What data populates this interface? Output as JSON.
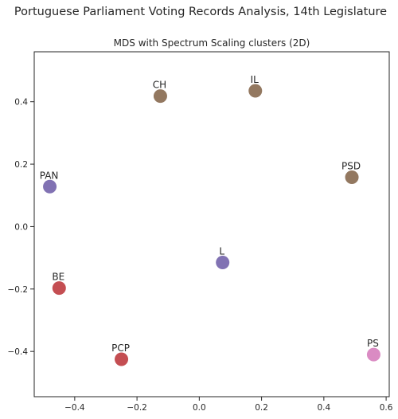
{
  "chart_data": {
    "type": "scatter",
    "suptitle": "Portuguese Parliament Voting Records Analysis, 14th Legislature",
    "title": "MDS with Spectrum Scaling clusters (2D)",
    "xlabel": "",
    "ylabel": "",
    "xlim": [
      -0.53,
      0.61
    ],
    "ylim": [
      -0.545,
      0.56
    ],
    "xticks": [
      {
        "value": -0.4,
        "label": "−0.4"
      },
      {
        "value": -0.2,
        "label": "−0.2"
      },
      {
        "value": 0.0,
        "label": "0.0"
      },
      {
        "value": 0.2,
        "label": "0.2"
      },
      {
        "value": 0.4,
        "label": "0.4"
      },
      {
        "value": 0.6,
        "label": "0.6"
      }
    ],
    "yticks": [
      {
        "value": -0.4,
        "label": "−0.4"
      },
      {
        "value": -0.2,
        "label": "−0.2"
      },
      {
        "value": 0.0,
        "label": "0.0"
      },
      {
        "value": 0.2,
        "label": "0.2"
      },
      {
        "value": 0.4,
        "label": "0.4"
      }
    ],
    "grid": false,
    "points": [
      {
        "label": "CH",
        "x": -0.125,
        "y": 0.418,
        "color": "#937860"
      },
      {
        "label": "IL",
        "x": 0.18,
        "y": 0.435,
        "color": "#937860"
      },
      {
        "label": "PSD",
        "x": 0.49,
        "y": 0.158,
        "color": "#937860"
      },
      {
        "label": "PAN",
        "x": -0.48,
        "y": 0.128,
        "color": "#8172b3"
      },
      {
        "label": "L",
        "x": 0.075,
        "y": -0.115,
        "color": "#8172b3"
      },
      {
        "label": "BE",
        "x": -0.45,
        "y": -0.197,
        "color": "#c44e52"
      },
      {
        "label": "PCP",
        "x": -0.25,
        "y": -0.425,
        "color": "#c44e52"
      },
      {
        "label": "PS",
        "x": 0.56,
        "y": -0.41,
        "color": "#da8bc3"
      }
    ]
  }
}
